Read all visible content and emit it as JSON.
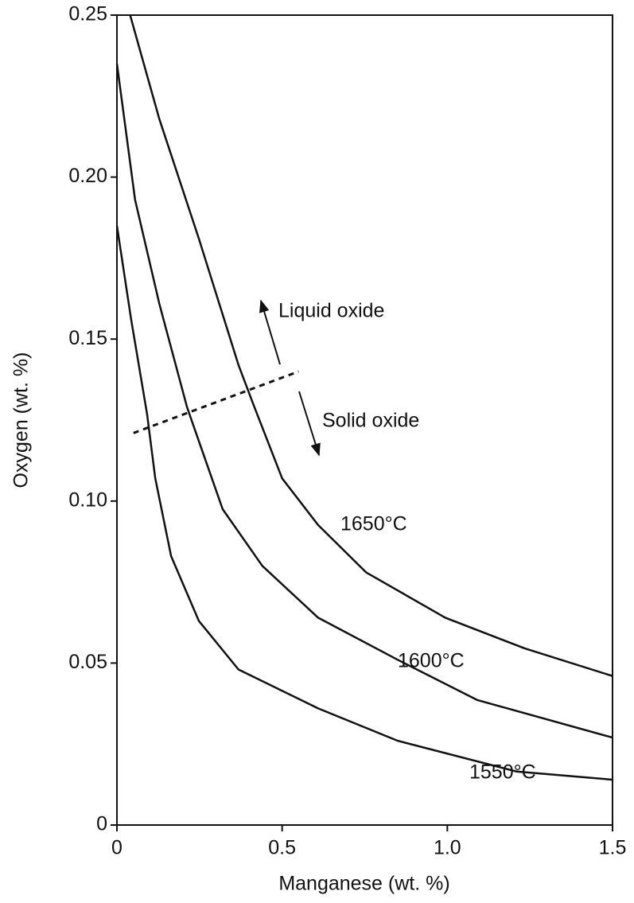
{
  "chart_data": {
    "type": "line",
    "xlabel": "Manganese (wt. %)",
    "ylabel": "Oxygen (wt. %)",
    "xlim": [
      0,
      1.5
    ],
    "ylim": [
      0,
      0.25
    ],
    "xticks": [
      0,
      0.5,
      {
        "value": 1.0,
        "label": "1.0"
      },
      1.5
    ],
    "yticks": [
      0,
      0.05,
      {
        "value": 0.1,
        "label": "0.10"
      },
      0.15,
      {
        "value": 0.2,
        "label": "0.20"
      },
      0.25
    ],
    "series": [
      {
        "name": "1650°C",
        "color": "#111111",
        "x": [
          0.04,
          0.128,
          0.248,
          0.368,
          0.416,
          0.5,
          0.609,
          0.754,
          0.994,
          1.235,
          1.5
        ],
        "values": [
          0.25,
          0.218,
          0.181,
          0.142,
          0.129,
          0.107,
          0.0926,
          0.078,
          0.064,
          0.0545,
          0.046
        ]
      },
      {
        "name": "1600°C",
        "color": "#111111",
        "x": [
          0,
          0.055,
          0.128,
          0.212,
          0.236,
          0.32,
          0.44,
          0.609,
          0.85,
          1.09,
          1.5
        ],
        "values": [
          0.235,
          0.193,
          0.161,
          0.129,
          0.122,
          0.0975,
          0.08,
          0.064,
          0.051,
          0.0386,
          0.027
        ]
      },
      {
        "name": "1550°C",
        "color": "#111111",
        "x": [
          0,
          0.043,
          0.091,
          0.116,
          0.164,
          0.248,
          0.368,
          0.609,
          0.85,
          1.21,
          1.5
        ],
        "values": [
          0.185,
          0.156,
          0.127,
          0.107,
          0.083,
          0.063,
          0.048,
          0.036,
          0.026,
          0.0165,
          0.014
        ]
      }
    ],
    "boundary": {
      "x": [
        0.05,
        0.55
      ],
      "values": [
        0.121,
        0.14
      ]
    },
    "annotations": [
      "Liquid oxide",
      "Solid oxide"
    ]
  }
}
